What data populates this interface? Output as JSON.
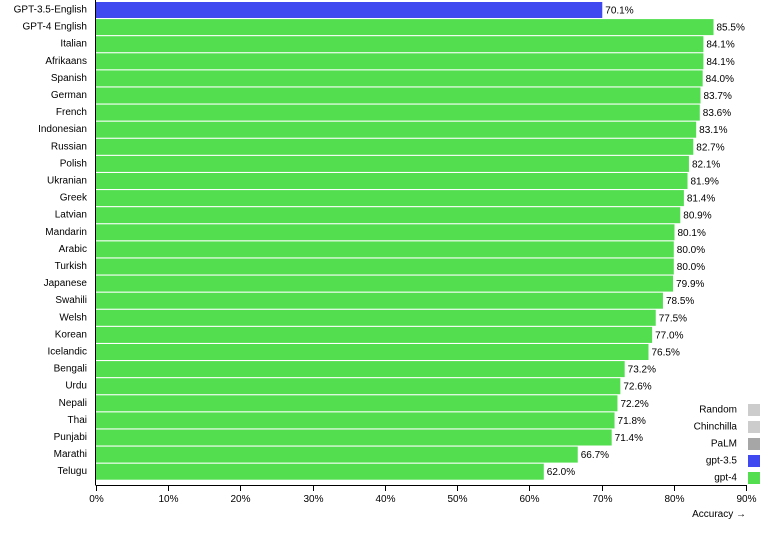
{
  "chart_data": {
    "type": "bar",
    "orientation": "horizontal",
    "categories": [
      "GPT-3.5-English",
      "GPT-4 English",
      "Italian",
      "Afrikaans",
      "Spanish",
      "German",
      "French",
      "Indonesian",
      "Russian",
      "Polish",
      "Ukranian",
      "Greek",
      "Latvian",
      "Mandarin",
      "Arabic",
      "Turkish",
      "Japanese",
      "Swahili",
      "Welsh",
      "Korean",
      "Icelandic",
      "Bengali",
      "Urdu",
      "Nepali",
      "Thai",
      "Punjabi",
      "Marathi",
      "Telugu"
    ],
    "values": [
      70.1,
      85.5,
      84.1,
      84.1,
      84.0,
      83.7,
      83.6,
      83.1,
      82.7,
      82.1,
      81.9,
      81.4,
      80.9,
      80.1,
      80.0,
      80.0,
      79.9,
      78.5,
      77.5,
      77.0,
      76.5,
      73.2,
      72.6,
      72.2,
      71.8,
      71.4,
      66.7,
      62.0
    ],
    "value_labels": [
      "70.1%",
      "85.5%",
      "84.1%",
      "84.1%",
      "84.0%",
      "83.7%",
      "83.6%",
      "83.1%",
      "82.7%",
      "82.1%",
      "81.9%",
      "81.4%",
      "80.9%",
      "80.1%",
      "80.0%",
      "80.0%",
      "79.9%",
      "78.5%",
      "77.5%",
      "77.0%",
      "76.5%",
      "73.2%",
      "72.6%",
      "72.2%",
      "71.8%",
      "71.4%",
      "66.7%",
      "62.0%"
    ],
    "bar_series": [
      "gpt-3.5",
      "gpt-4",
      "gpt-4",
      "gpt-4",
      "gpt-4",
      "gpt-4",
      "gpt-4",
      "gpt-4",
      "gpt-4",
      "gpt-4",
      "gpt-4",
      "gpt-4",
      "gpt-4",
      "gpt-4",
      "gpt-4",
      "gpt-4",
      "gpt-4",
      "gpt-4",
      "gpt-4",
      "gpt-4",
      "gpt-4",
      "gpt-4",
      "gpt-4",
      "gpt-4",
      "gpt-4",
      "gpt-4",
      "gpt-4",
      "gpt-4"
    ],
    "title": "",
    "xlabel": "Accuracy →",
    "ylabel": "",
    "xlim": [
      0,
      90
    ],
    "xticks": [
      0,
      10,
      20,
      30,
      40,
      50,
      60,
      70,
      80,
      90
    ],
    "xtick_labels": [
      "0%",
      "10%",
      "20%",
      "30%",
      "40%",
      "50%",
      "60%",
      "70%",
      "80%",
      "90%"
    ],
    "grid": false,
    "legend_position": "bottom-right",
    "legend": [
      {
        "name": "Random",
        "color": "#cccccc"
      },
      {
        "name": "Chinchilla",
        "color": "#cccccc"
      },
      {
        "name": "PaLM",
        "color": "#a6a6a6"
      },
      {
        "name": "gpt-3.5",
        "color": "#4049f0"
      },
      {
        "name": "gpt-4",
        "color": "#52de4f"
      }
    ]
  }
}
